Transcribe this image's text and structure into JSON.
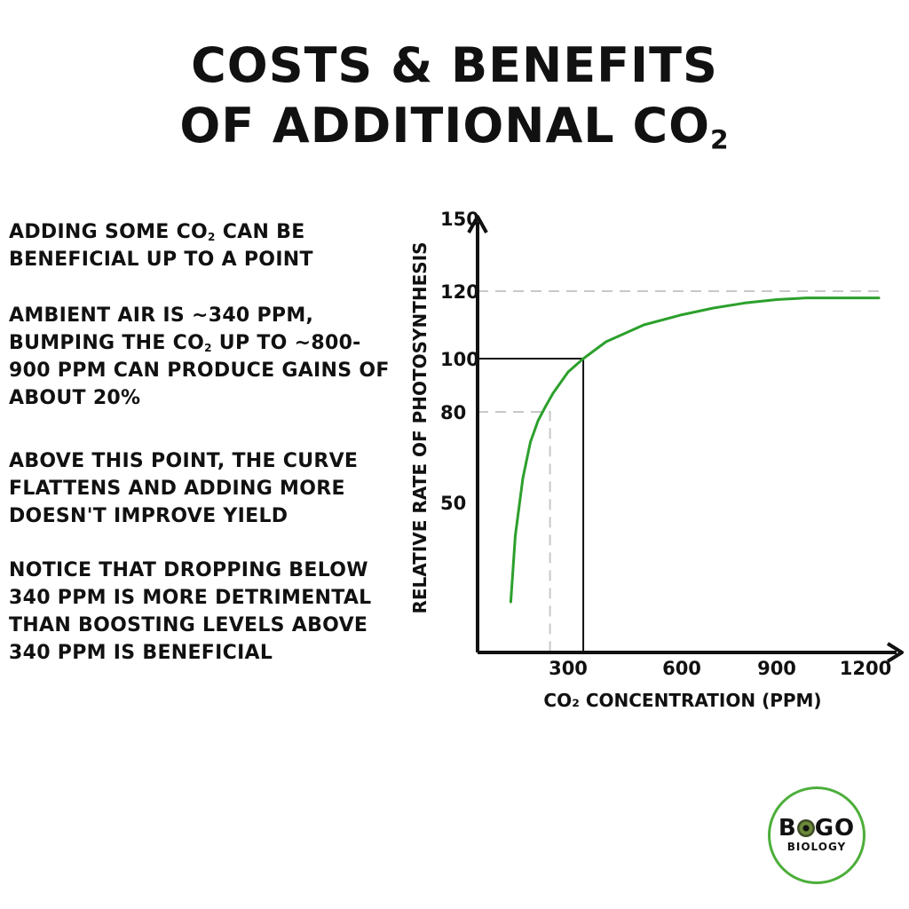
{
  "title": {
    "line1": "COSTS & BENEFITS",
    "line2": "OF ADDITIONAL CO",
    "line2_sub": "2"
  },
  "notes": {
    "p1a": "ADDING SOME CO",
    "p1_sub": "2",
    "p1b": " CAN BE BENEFICIAL UP TO A POINT",
    "p2a": "AMBIENT AIR IS ~340 PPM, BUMPING THE CO",
    "p2_sub": "2",
    "p2b": " UP TO ~800-900 PPM CAN PRODUCE GAINS OF ABOUT 20%",
    "p3": "ABOVE THIS POINT, THE CURVE FLATTENS AND ADDING MORE DOESN'T IMPROVE YIELD",
    "p4": "NOTICE THAT DROPPING BELOW 340 PPM IS MORE DETRIMENTAL THAN BOOSTING LEVELS ABOVE 340 PPM IS BENEFICIAL"
  },
  "logo": {
    "word_left": "B",
    "word_right": "GO",
    "sub": "BIOLOGY"
  },
  "colors": {
    "curve": "#2ca02c",
    "reference_dashed": "#c8c8c8",
    "reference_solid": "#111111",
    "logo_ring": "#4cae3a"
  },
  "chart_data": {
    "type": "line",
    "xlabel": "CO₂ CONCENTRATION (PPM)",
    "ylabel": "RELATIVE RATE OF PHOTOSYNTHESIS",
    "x_ticks": [
      300,
      600,
      900,
      1200
    ],
    "y_ticks": [
      50,
      80,
      100,
      120,
      150
    ],
    "grid": false,
    "series": [
      {
        "x": [
          110,
          125,
          150,
          175,
          200,
          225,
          250,
          275,
          300,
          340,
          400,
          500,
          600,
          700,
          800,
          900,
          1000,
          1100,
          1200,
          1250
        ],
        "y": [
          20,
          40,
          58,
          70,
          77,
          82,
          87,
          91,
          95,
          100,
          105,
          110,
          113,
          115,
          116.5,
          117.5,
          118,
          118,
          118,
          118
        ]
      }
    ],
    "reference_lines": [
      {
        "style": "solid",
        "x": 340,
        "y": 100
      },
      {
        "style": "dashed",
        "x": 240,
        "y": 80
      },
      {
        "style": "dashed",
        "y": 120
      }
    ]
  }
}
